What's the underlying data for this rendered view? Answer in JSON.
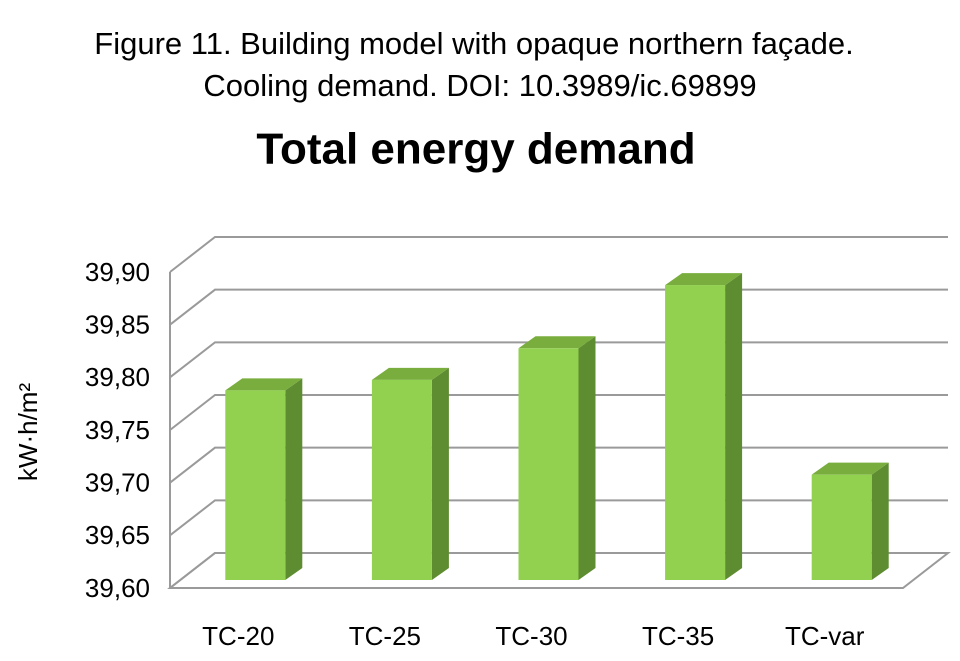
{
  "chart_data": {
    "type": "bar3d",
    "caption": [
      "Figure 11. Building model with opaque northern façade.",
      "Cooling demand. DOI: 10.3989/ic.69899"
    ],
    "title": "Total energy demand",
    "y_label": "kW·h/m²",
    "categories": [
      "TC-20",
      "TC-25",
      "TC-30",
      "TC-35",
      "TC-var"
    ],
    "values": [
      39.78,
      39.79,
      39.82,
      39.88,
      39.7
    ],
    "color": "#92d050",
    "ylim": [
      39.6,
      39.9
    ],
    "yticks": [
      {
        "value": 39.6,
        "label": "39,60"
      },
      {
        "value": 39.65,
        "label": "39,65"
      },
      {
        "value": 39.7,
        "label": "39,70"
      },
      {
        "value": 39.75,
        "label": "39,75"
      },
      {
        "value": 39.8,
        "label": "39,80"
      },
      {
        "value": 39.85,
        "label": "39,85"
      },
      {
        "value": 39.9,
        "label": "39,90"
      }
    ],
    "grid": true
  }
}
